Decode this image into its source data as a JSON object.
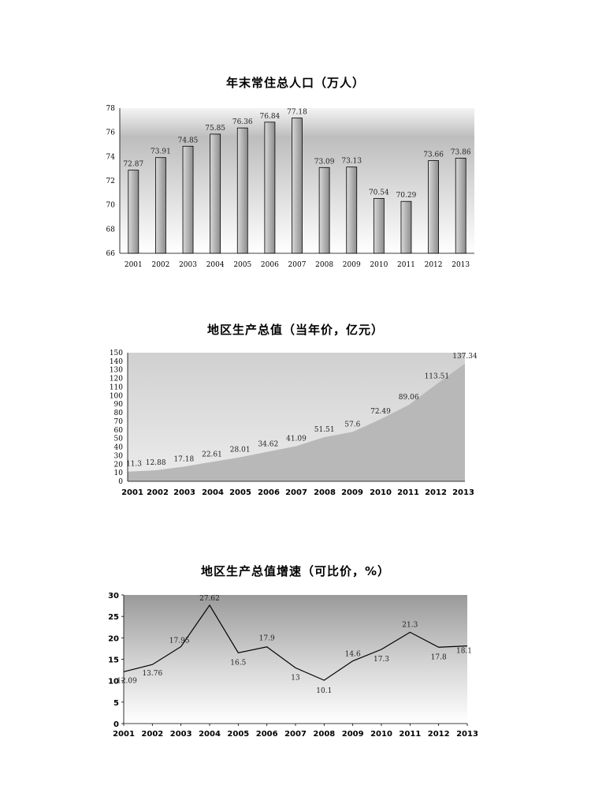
{
  "chart_data": [
    {
      "type": "bar",
      "title": "年末常住总人口（万人）",
      "categories": [
        "2001",
        "2002",
        "2003",
        "2004",
        "2005",
        "2006",
        "2007",
        "2008",
        "2009",
        "2010",
        "2011",
        "2012",
        "2013"
      ],
      "values": [
        72.87,
        73.91,
        74.85,
        75.85,
        76.36,
        76.84,
        77.18,
        73.09,
        73.13,
        70.54,
        70.29,
        73.66,
        73.86
      ],
      "value_labels": [
        "72.87",
        "73.91",
        "74.85",
        "75.85",
        "76.36",
        "76.84",
        "77.18",
        "73.09",
        "73.13",
        "70.54",
        "70.29",
        "73.66",
        "73.86"
      ],
      "ylim": [
        66,
        78
      ],
      "yticks": [
        "66",
        "68",
        "70",
        "72",
        "74",
        "76",
        "78"
      ],
      "grid": false,
      "legend": "none"
    },
    {
      "type": "area",
      "title": "地区生产总值（当年价，亿元）",
      "categories": [
        "2001",
        "2002",
        "2003",
        "2004",
        "2005",
        "2006",
        "2007",
        "2008",
        "2009",
        "2010",
        "2011",
        "2012",
        "2013"
      ],
      "values": [
        11.3,
        12.88,
        17.18,
        22.61,
        28.01,
        34.62,
        41.09,
        51.51,
        57.6,
        72.49,
        89.06,
        113.51,
        137.34
      ],
      "value_labels": [
        "11.3",
        "12.88",
        "17.18",
        "22.61",
        "28.01",
        "34.62",
        "41.09",
        "51.51",
        "57.6",
        "72.49",
        "89.06",
        "113.51",
        "137.34"
      ],
      "ylim": [
        0,
        150
      ],
      "yticks": [
        "0",
        "10",
        "20",
        "30",
        "40",
        "50",
        "60",
        "70",
        "80",
        "90",
        "100",
        "110",
        "120",
        "130",
        "140",
        "150"
      ],
      "grid": false,
      "legend": "none"
    },
    {
      "type": "line",
      "title": "地区生产总值增速（可比价，%）",
      "categories": [
        "2001",
        "2002",
        "2003",
        "2004",
        "2005",
        "2006",
        "2007",
        "2008",
        "2009",
        "2010",
        "2011",
        "2012",
        "2013"
      ],
      "values": [
        12.09,
        13.76,
        17.95,
        27.62,
        16.5,
        17.9,
        13,
        10.1,
        14.6,
        17.3,
        21.3,
        17.8,
        18.1
      ],
      "value_labels": [
        "12.09",
        "13.76",
        "17.95",
        "27.62",
        "16.5",
        "17.9",
        "13",
        "10.1",
        "14.6",
        "17.3",
        "21.3",
        "17.8",
        "18.1"
      ],
      "ylim": [
        0,
        30
      ],
      "yticks": [
        "0",
        "5",
        "10",
        "15",
        "20",
        "25",
        "30"
      ],
      "grid": false,
      "legend": "none"
    }
  ],
  "colors": {
    "bar_fill_light": "#d9d9d9",
    "bar_fill_dark": "#8c8c8c",
    "area_fill": "#b8b8b8",
    "plot_bg_light": "#f4f4f4",
    "plot_bg_dark": "#bdbdbd",
    "line": "#000000"
  }
}
